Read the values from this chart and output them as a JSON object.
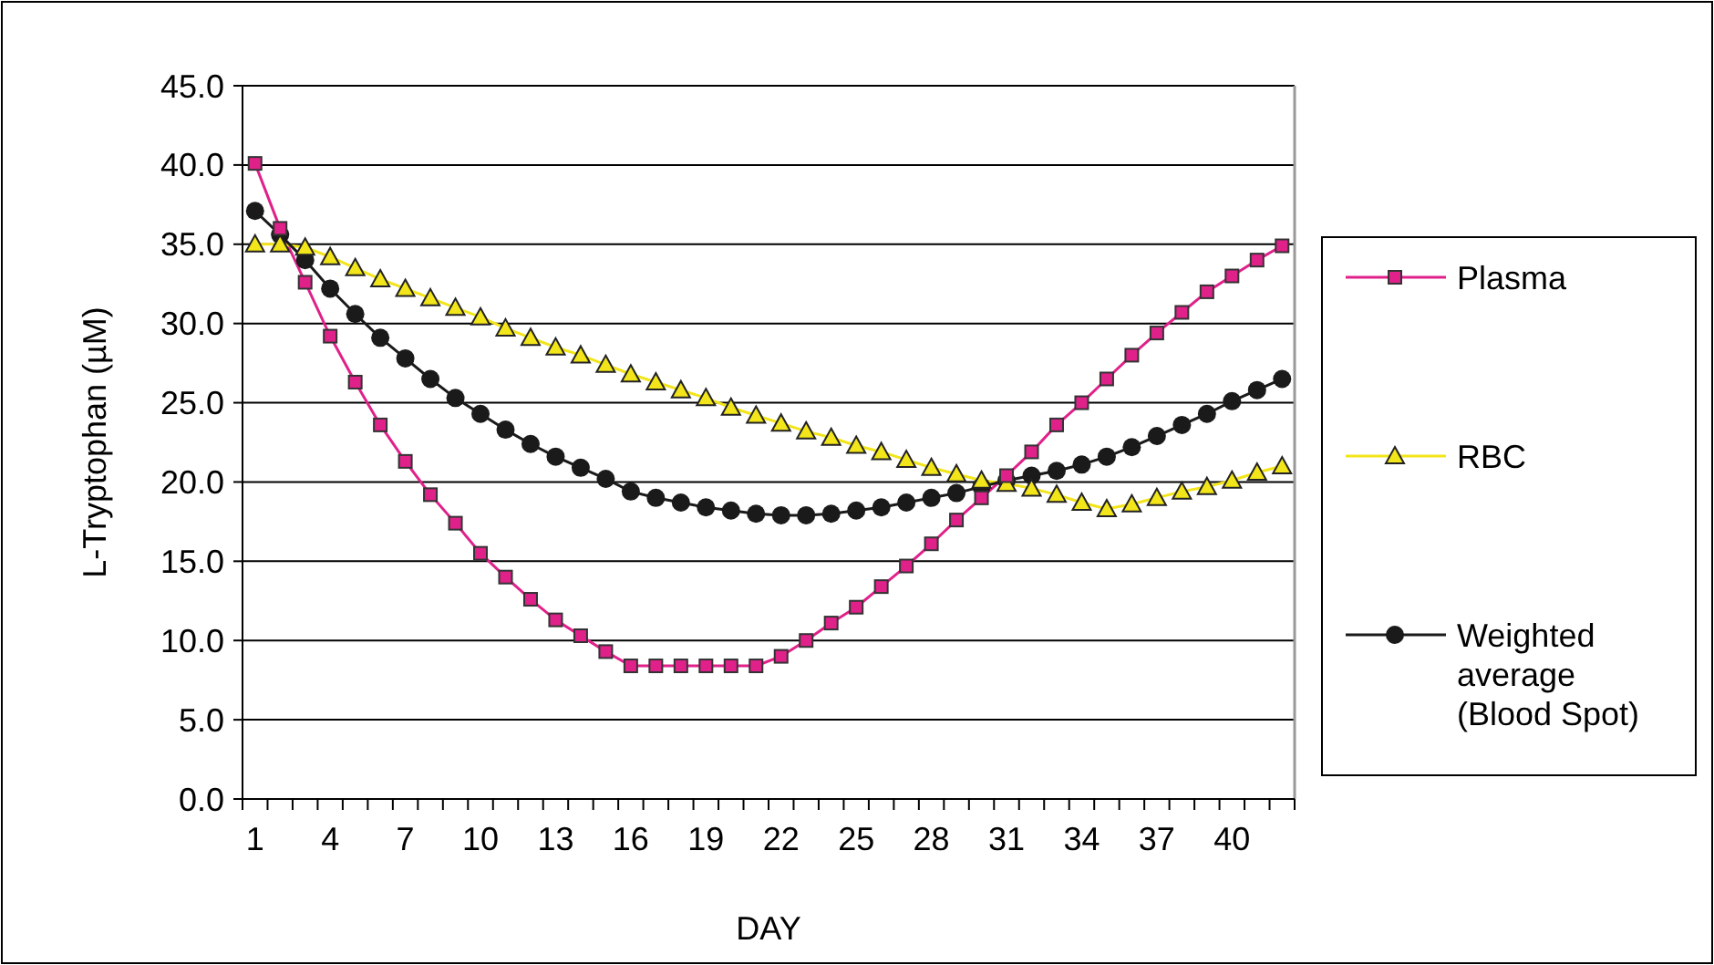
{
  "chart_data": {
    "type": "line",
    "xlabel": "DAY",
    "ylabel": "L-Tryptophan (µM)",
    "categories": [
      "1",
      null,
      null,
      "4",
      null,
      null,
      "7",
      null,
      null,
      "10",
      null,
      null,
      "13",
      null,
      null,
      "16",
      null,
      null,
      "19",
      null,
      null,
      "22",
      null,
      null,
      "25",
      null,
      null,
      "28",
      null,
      null,
      "31",
      null,
      null,
      "34",
      null,
      null,
      "37",
      null,
      null,
      "40",
      null,
      null
    ],
    "series": [
      {
        "name": "Plasma",
        "color": "#e0218a",
        "marker": "square",
        "values": [
          40.1,
          36.0,
          32.6,
          29.2,
          26.3,
          23.6,
          21.3,
          19.2,
          17.4,
          15.5,
          14.0,
          12.6,
          11.3,
          10.3,
          9.3,
          8.4,
          8.4,
          8.4,
          8.4,
          8.4,
          8.4,
          9.0,
          10.0,
          11.1,
          12.1,
          13.4,
          14.7,
          16.1,
          17.6,
          19.0,
          20.4,
          21.9,
          23.6,
          25.0,
          26.5,
          28.0,
          29.4,
          30.7,
          32.0,
          33.0,
          34.0,
          34.9
        ]
      },
      {
        "name": "RBC",
        "color": "#f2e51a",
        "marker": "triangle",
        "values": [
          35.0,
          35.0,
          34.8,
          34.2,
          33.5,
          32.8,
          32.2,
          31.6,
          31.0,
          30.4,
          29.7,
          29.1,
          28.5,
          28.0,
          27.4,
          26.8,
          26.3,
          25.8,
          25.3,
          24.7,
          24.2,
          23.7,
          23.2,
          22.8,
          22.3,
          21.9,
          21.4,
          20.9,
          20.5,
          20.1,
          19.9,
          19.6,
          19.2,
          18.7,
          18.3,
          18.6,
          19.0,
          19.4,
          19.7,
          20.1,
          20.6,
          21.0
        ]
      },
      {
        "name": "Weighted average (Blood Spot)",
        "color": "#1a1a1a",
        "marker": "circle",
        "values": [
          37.1,
          35.6,
          34.0,
          32.2,
          30.6,
          29.1,
          27.8,
          26.5,
          25.3,
          24.3,
          23.3,
          22.4,
          21.6,
          20.9,
          20.2,
          19.4,
          19.0,
          18.7,
          18.4,
          18.2,
          18.0,
          17.9,
          17.9,
          18.0,
          18.2,
          18.4,
          18.7,
          19.0,
          19.3,
          19.7,
          20.1,
          20.4,
          20.7,
          21.1,
          21.6,
          22.2,
          22.9,
          23.6,
          24.3,
          25.1,
          25.8,
          26.5
        ]
      }
    ],
    "ylim": [
      0,
      45
    ],
    "yticks": [
      {
        "value": 0,
        "label": "0.0"
      },
      {
        "value": 5,
        "label": "5.0"
      },
      {
        "value": 10,
        "label": "10.0"
      },
      {
        "value": 15,
        "label": "15.0"
      },
      {
        "value": 20,
        "label": "20.0"
      },
      {
        "value": 25,
        "label": "25.0"
      },
      {
        "value": 30,
        "label": "30.0"
      },
      {
        "value": 35,
        "label": "35.0"
      },
      {
        "value": 40,
        "label": "40.0"
      },
      {
        "value": 45,
        "label": "45.0"
      }
    ],
    "grid": "y",
    "legend": "right"
  }
}
